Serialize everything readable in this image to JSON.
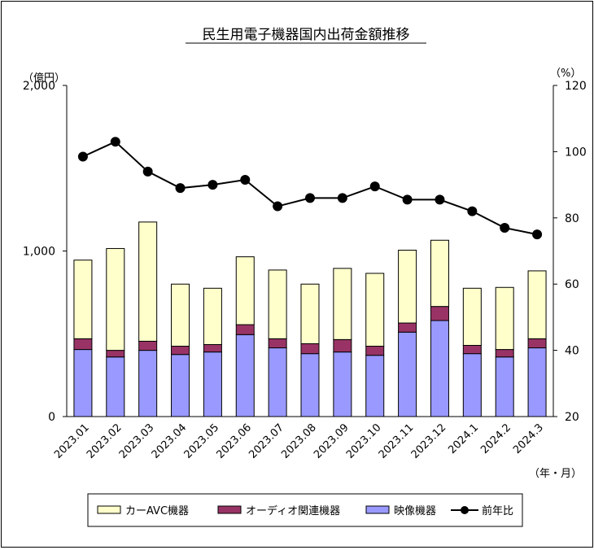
{
  "chart_data": {
    "type": "bar",
    "title": "民生用電子機器国内出荷金額推移",
    "y_left_unit": "（億円）",
    "y_right_unit": "（%）",
    "x_unit": "（年・月）",
    "ylim_left": [
      0,
      2000
    ],
    "yticks_left": [
      "0",
      "1,000",
      "2,000"
    ],
    "ylim_right": [
      20,
      120
    ],
    "yticks_right": [
      "20",
      "40",
      "60",
      "80",
      "100",
      "120"
    ],
    "categories": [
      "2023.01",
      "2023.02",
      "2023.03",
      "2023.04",
      "2023.05",
      "2023.06",
      "2023.07",
      "2023.08",
      "2023.09",
      "2023.10",
      "2023.11",
      "2023.12",
      "2024.1",
      "2024.2",
      "2024.3"
    ],
    "series": [
      {
        "name": "映像機器",
        "type": "bar",
        "color": "#9999ff",
        "values": [
          405,
          360,
          400,
          375,
          390,
          495,
          415,
          380,
          390,
          370,
          510,
          580,
          380,
          360,
          415
        ]
      },
      {
        "name": "オーディオ関連機器",
        "type": "bar",
        "color": "#993366",
        "values": [
          65,
          40,
          55,
          50,
          45,
          60,
          55,
          60,
          75,
          55,
          55,
          85,
          50,
          45,
          55
        ]
      },
      {
        "name": "カーAVC機器",
        "type": "bar",
        "color": "#ffffcc",
        "values": [
          475,
          615,
          720,
          375,
          340,
          410,
          415,
          360,
          430,
          440,
          440,
          400,
          345,
          375,
          410
        ]
      },
      {
        "name": "前年比",
        "type": "line",
        "axis": "right",
        "color": "#000000",
        "values": [
          98.5,
          103,
          94,
          89,
          90,
          91.5,
          83.5,
          86,
          86,
          89.5,
          85.5,
          85.5,
          82,
          77,
          75
        ]
      }
    ],
    "legend": {
      "placement": "bottom",
      "items": [
        {
          "label": "カーAVC機器",
          "series": "カーAVC機器"
        },
        {
          "label": "オーディオ関連機器",
          "series": "オーディオ関連機器"
        },
        {
          "label": "映像機器",
          "series": "映像機器"
        },
        {
          "label": "前年比",
          "series": "前年比"
        }
      ]
    },
    "grid": false
  }
}
